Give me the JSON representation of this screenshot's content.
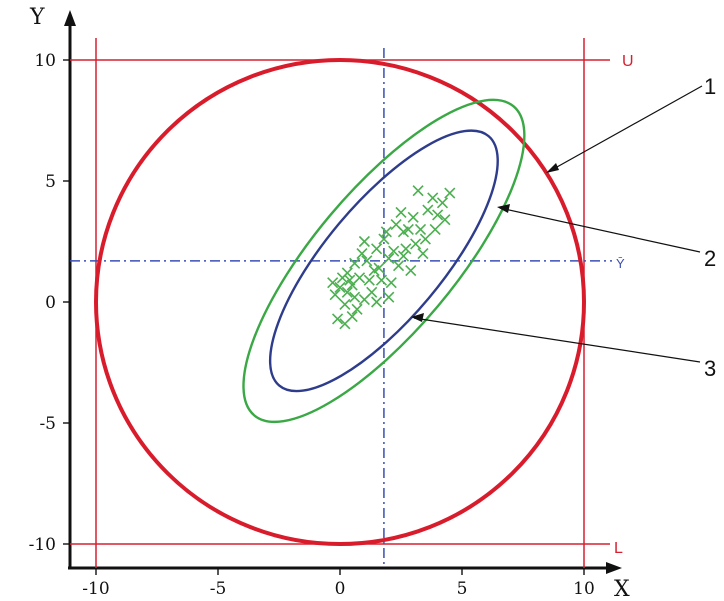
{
  "chart_data": {
    "type": "scatter",
    "title": "",
    "xlabel": "X",
    "ylabel": "Y",
    "xlim": [
      -11,
      11
    ],
    "ylim": [
      -11,
      11
    ],
    "x_ticks": [
      "-10",
      "-5",
      "0",
      "5",
      "10"
    ],
    "y_ticks": [
      "10",
      "5",
      "0",
      "-5",
      "-10"
    ],
    "x_tick_values": [
      -10,
      -5,
      0,
      5,
      10
    ],
    "y_tick_values": [
      10,
      5,
      0,
      -5,
      -10
    ],
    "limits": {
      "upper_label": "U",
      "lower_label": "L",
      "upper": 10,
      "lower": -10,
      "left": -10,
      "right": 10
    },
    "circle": {
      "center": [
        0,
        0
      ],
      "radius": 10
    },
    "ellipse_outer": {
      "center": [
        1.8,
        1.7
      ],
      "semi_major": 8.3,
      "semi_minor": 2.9,
      "angle_deg": 50
    },
    "ellipse_inner": {
      "center": [
        1.8,
        1.7
      ],
      "semi_major": 6.7,
      "semi_minor": 2.4,
      "angle_deg": 50
    },
    "mean": {
      "x": 1.8,
      "y": 1.7,
      "y_label": "Ȳ"
    },
    "callouts": [
      "1",
      "2",
      "3"
    ],
    "points": [
      [
        -0.2,
        0.3
      ],
      [
        0.0,
        0.6
      ],
      [
        0.3,
        0.4
      ],
      [
        0.5,
        0.7
      ],
      [
        0.6,
        0.2
      ],
      [
        0.2,
        -0.1
      ],
      [
        0.8,
        1.0
      ],
      [
        0.4,
        0.9
      ],
      [
        -0.1,
        -0.7
      ],
      [
        0.2,
        -0.9
      ],
      [
        0.5,
        -0.6
      ],
      [
        0.7,
        -0.3
      ],
      [
        1.0,
        0.1
      ],
      [
        1.2,
        0.9
      ],
      [
        1.4,
        1.3
      ],
      [
        1.1,
        1.7
      ],
      [
        0.9,
        2.0
      ],
      [
        0.6,
        1.6
      ],
      [
        1.5,
        2.2
      ],
      [
        1.8,
        2.6
      ],
      [
        2.0,
        1.8
      ],
      [
        2.2,
        2.1
      ],
      [
        1.7,
        0.9
      ],
      [
        1.3,
        0.4
      ],
      [
        2.4,
        1.5
      ],
      [
        2.6,
        2.9
      ],
      [
        2.3,
        3.2
      ],
      [
        2.8,
        3.0
      ],
      [
        3.0,
        3.5
      ],
      [
        3.3,
        3.0
      ],
      [
        3.1,
        2.4
      ],
      [
        2.9,
        1.3
      ],
      [
        3.6,
        3.8
      ],
      [
        3.8,
        4.3
      ],
      [
        4.2,
        4.1
      ],
      [
        4.3,
        3.4
      ],
      [
        3.5,
        2.6
      ],
      [
        2.5,
        3.7
      ],
      [
        3.2,
        4.6
      ],
      [
        4.5,
        4.5
      ],
      [
        1.9,
        2.9
      ],
      [
        2.7,
        2.2
      ],
      [
        1.6,
        1.4
      ],
      [
        0.3,
        1.2
      ],
      [
        1.0,
        2.5
      ],
      [
        2.1,
        0.8
      ],
      [
        3.9,
        3.0
      ],
      [
        2.0,
        0.2
      ],
      [
        1.5,
        0.0
      ],
      [
        0.1,
        1.0
      ],
      [
        -0.3,
        0.8
      ],
      [
        2.6,
        1.9
      ],
      [
        3.4,
        2.0
      ],
      [
        4.0,
        3.6
      ]
    ]
  }
}
